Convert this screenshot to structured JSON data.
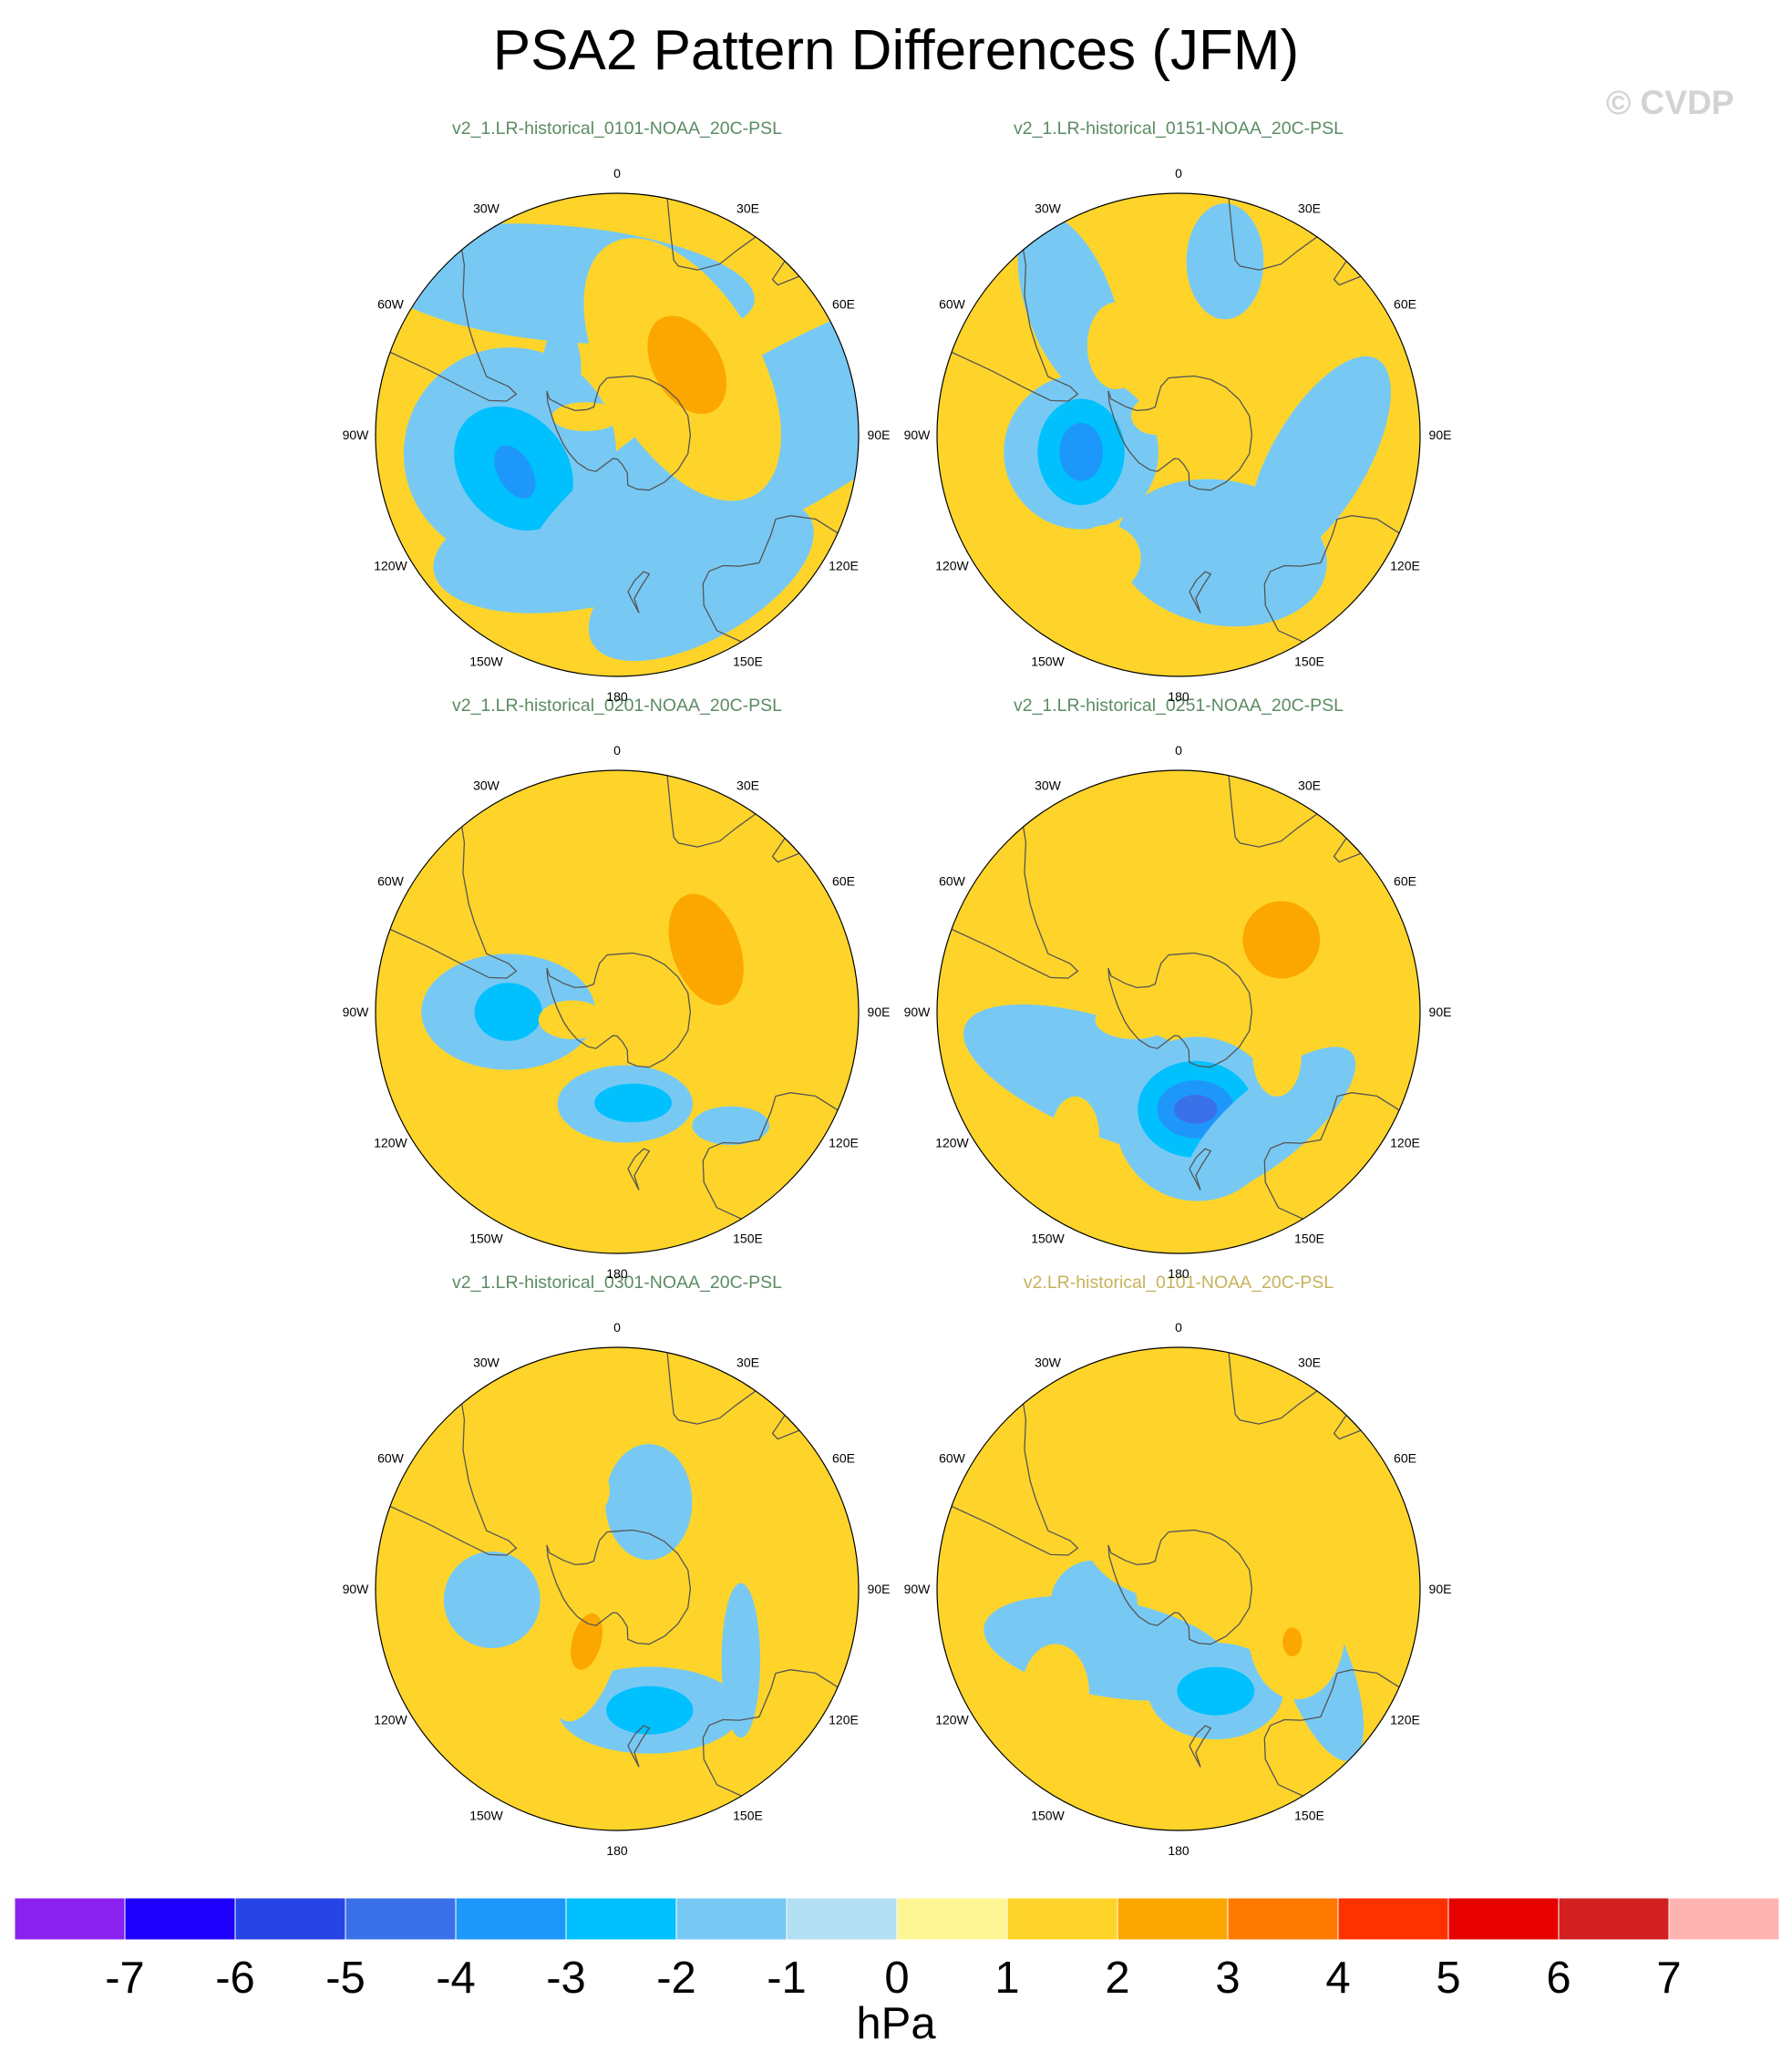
{
  "title": "PSA2 Pattern Differences (JFM)",
  "watermark": "© CVDP",
  "colors": {
    "panel_title_default": "#5b8b63",
    "panel_title_highlight": "#c8b25a",
    "coast": "#555555"
  },
  "chart_data": {
    "type": "heatmap",
    "projection": "south-polar-stereographic",
    "variable": "sea level pressure difference",
    "units": "hPa",
    "lon_labels": [
      "0",
      "30E",
      "60E",
      "90E",
      "120E",
      "150E",
      "180",
      "150W",
      "120W",
      "90W",
      "60W",
      "30W"
    ],
    "colorbar": {
      "levels": [
        -7,
        -6,
        -5,
        -4,
        -3,
        -2,
        -1,
        0,
        1,
        2,
        3,
        4,
        5,
        6,
        7
      ],
      "colors": [
        "#8a21f0",
        "#1e00fc",
        "#2744e6",
        "#3b71e8",
        "#1e97fb",
        "#01c0fe",
        "#77c9f4",
        "#b3dff3",
        "#fef694",
        "#fed42a",
        "#fca700",
        "#fd7900",
        "#fe3200",
        "#e60000",
        "#d21f1f",
        "#ffb4b4"
      ],
      "label": "hPa"
    },
    "panels": [
      {
        "title": "v2_1.LR-historical_0101-NOAA_20C-PSL",
        "highlight": false,
        "features": [
          {
            "level": -1,
            "lat": -52,
            "lon": -160,
            "w": 0.13,
            "h": 0.3,
            "rot": 80
          },
          {
            "level": -1,
            "lat": -55,
            "lon": -100,
            "w": 0.22,
            "h": 0.22,
            "rot": 30
          },
          {
            "level": -2,
            "lat": -55,
            "lon": -108,
            "w": 0.14,
            "h": 0.11,
            "rot": 50
          },
          {
            "level": -3,
            "lat": -55,
            "lon": -110,
            "w": 0.06,
            "h": 0.035,
            "rot": 60
          },
          {
            "level": -1,
            "lat": -62,
            "lon": -40,
            "w": 0.04,
            "h": 0.09,
            "rot": 0
          },
          {
            "level": -1,
            "lat": -40,
            "lon": 90,
            "w": 0.16,
            "h": 0.6,
            "rot": 60
          },
          {
            "level": -1,
            "lat": -38,
            "lon": 150,
            "w": 0.12,
            "h": 0.26,
            "rot": 60
          },
          {
            "level": -1,
            "lat": -40,
            "lon": -20,
            "w": 0.12,
            "h": 0.4,
            "rot": 95
          },
          {
            "level": 1,
            "lat": -60,
            "lon": 45,
            "w": 0.16,
            "h": 0.3,
            "rot": -30
          },
          {
            "level": 2,
            "lat": -58,
            "lon": 45,
            "w": 0.07,
            "h": 0.11,
            "rot": -30
          },
          {
            "level": 1,
            "lat": -78,
            "lon": -60,
            "w": 0.07,
            "h": 0.03,
            "rot": 0
          }
        ]
      },
      {
        "title": "v2_1.LR-historical_0151-NOAA_20C-PSL",
        "highlight": false,
        "features": [
          {
            "level": -1,
            "lat": -58,
            "lon": -100,
            "w": 0.16,
            "h": 0.16,
            "rot": 0
          },
          {
            "level": -2,
            "lat": -58,
            "lon": -100,
            "w": 0.09,
            "h": 0.11,
            "rot": 0
          },
          {
            "level": -3,
            "lat": -58,
            "lon": -100,
            "w": 0.045,
            "h": 0.06,
            "rot": 0
          },
          {
            "level": -1,
            "lat": -50,
            "lon": 160,
            "w": 0.22,
            "h": 0.15,
            "rot": 10
          },
          {
            "level": -1,
            "lat": -45,
            "lon": 100,
            "w": 0.1,
            "h": 0.24,
            "rot": 30
          },
          {
            "level": -1,
            "lat": -38,
            "lon": -40,
            "w": 0.09,
            "h": 0.2,
            "rot": -20
          },
          {
            "level": -1,
            "lat": -35,
            "lon": 15,
            "w": 0.08,
            "h": 0.12,
            "rot": 0
          },
          {
            "level": 1,
            "lat": -55,
            "lon": -35,
            "w": 0.06,
            "h": 0.09,
            "rot": 0
          },
          {
            "level": 1,
            "lat": -55,
            "lon": 40,
            "w": 0.06,
            "h": 0.05,
            "rot": 0
          },
          {
            "level": 1,
            "lat": -45,
            "lon": -150,
            "w": 0.07,
            "h": 0.07,
            "rot": 0
          },
          {
            "level": 1,
            "lat": -80,
            "lon": -50,
            "w": 0.05,
            "h": 0.04,
            "rot": 0
          }
        ]
      },
      {
        "title": "v2_1.LR-historical_0201-NOAA_20C-PSL",
        "highlight": false,
        "features": [
          {
            "level": -1,
            "lat": -55,
            "lon": -90,
            "w": 0.18,
            "h": 0.12,
            "rot": 0
          },
          {
            "level": -2,
            "lat": -55,
            "lon": -90,
            "w": 0.07,
            "h": 0.06,
            "rot": 0
          },
          {
            "level": -1,
            "lat": -60,
            "lon": 175,
            "w": 0.14,
            "h": 0.08,
            "rot": 0
          },
          {
            "level": -2,
            "lat": -60,
            "lon": 170,
            "w": 0.08,
            "h": 0.04,
            "rot": 0
          },
          {
            "level": -1,
            "lat": -40,
            "lon": 135,
            "w": 0.08,
            "h": 0.04,
            "rot": 0
          },
          {
            "level": 1,
            "lat": -55,
            "lon": 55,
            "w": 0.14,
            "h": 0.22,
            "rot": -20
          },
          {
            "level": 2,
            "lat": -55,
            "lon": 55,
            "w": 0.07,
            "h": 0.12,
            "rot": -20
          },
          {
            "level": 1,
            "lat": -55,
            "lon": -20,
            "w": 0.11,
            "h": 0.06,
            "rot": 0
          },
          {
            "level": 1,
            "lat": -75,
            "lon": -100,
            "w": 0.07,
            "h": 0.04,
            "rot": 0
          }
        ]
      },
      {
        "title": "v2_1.LR-historical_0251-NOAA_20C-PSL",
        "highlight": false,
        "features": [
          {
            "level": -1,
            "lat": -60,
            "lon": -140,
            "w": 0.34,
            "h": 0.12,
            "rot": 20
          },
          {
            "level": -1,
            "lat": -55,
            "lon": 170,
            "w": 0.17,
            "h": 0.17,
            "rot": 0
          },
          {
            "level": -2,
            "lat": -58,
            "lon": 170,
            "w": 0.12,
            "h": 0.1,
            "rot": 0
          },
          {
            "level": -3,
            "lat": -58,
            "lon": 170,
            "w": 0.08,
            "h": 0.06,
            "rot": 0
          },
          {
            "level": -4,
            "lat": -58,
            "lon": 170,
            "w": 0.045,
            "h": 0.03,
            "rot": 0
          },
          {
            "level": -1,
            "lat": -45,
            "lon": 140,
            "w": 0.22,
            "h": 0.08,
            "rot": -40
          },
          {
            "level": 1,
            "lat": -50,
            "lon": 55,
            "w": 0.14,
            "h": 0.14,
            "rot": 0
          },
          {
            "level": 2,
            "lat": -50,
            "lon": 55,
            "w": 0.08,
            "h": 0.08,
            "rot": 0
          },
          {
            "level": 1,
            "lat": -55,
            "lon": -25,
            "w": 0.09,
            "h": 0.1,
            "rot": 0
          },
          {
            "level": 1,
            "lat": -75,
            "lon": -100,
            "w": 0.08,
            "h": 0.04,
            "rot": 0
          },
          {
            "level": 1,
            "lat": -55,
            "lon": 115,
            "w": 0.05,
            "h": 0.08,
            "rot": 0
          },
          {
            "level": 1,
            "lat": -40,
            "lon": -140,
            "w": 0.05,
            "h": 0.08,
            "rot": 0
          }
        ]
      },
      {
        "title": "v2_1.LR-historical_0301-NOAA_20C-PSL",
        "highlight": false,
        "features": [
          {
            "level": -1,
            "lat": -50,
            "lon": 165,
            "w": 0.19,
            "h": 0.09,
            "rot": 0
          },
          {
            "level": -2,
            "lat": -50,
            "lon": 165,
            "w": 0.09,
            "h": 0.05,
            "rot": 0
          },
          {
            "level": -1,
            "lat": -50,
            "lon": -95,
            "w": 0.1,
            "h": 0.1,
            "rot": 0
          },
          {
            "level": -1,
            "lat": -60,
            "lon": 20,
            "w": 0.09,
            "h": 0.12,
            "rot": 0
          },
          {
            "level": -1,
            "lat": -45,
            "lon": 120,
            "w": 0.04,
            "h": 0.16,
            "rot": 0
          },
          {
            "level": 1,
            "lat": -70,
            "lon": -150,
            "w": 0.07,
            "h": 0.17,
            "rot": 15
          },
          {
            "level": 2,
            "lat": -70,
            "lon": -150,
            "w": 0.03,
            "h": 0.06,
            "rot": 15
          },
          {
            "level": 1,
            "lat": -55,
            "lon": -25,
            "w": 0.08,
            "h": 0.07,
            "rot": 0
          },
          {
            "level": 1,
            "lat": -55,
            "lon": 65,
            "w": 0.05,
            "h": 0.08,
            "rot": 0
          }
        ]
      },
      {
        "title": "v2.LR-historical_0101-NOAA_20C-PSL",
        "highlight": true,
        "features": [
          {
            "level": -1,
            "lat": -60,
            "lon": -130,
            "w": 0.26,
            "h": 0.1,
            "rot": 10
          },
          {
            "level": -1,
            "lat": -62,
            "lon": -100,
            "w": 0.09,
            "h": 0.09,
            "rot": 0
          },
          {
            "level": -1,
            "lat": -55,
            "lon": 160,
            "w": 0.14,
            "h": 0.1,
            "rot": 0
          },
          {
            "level": -2,
            "lat": -55,
            "lon": 160,
            "w": 0.08,
            "h": 0.05,
            "rot": 0
          },
          {
            "level": -1,
            "lat": -40,
            "lon": 120,
            "w": 0.07,
            "h": 0.2,
            "rot": -20
          },
          {
            "level": 1,
            "lat": -70,
            "lon": 0,
            "w": 0.2,
            "h": 0.15,
            "rot": 0
          },
          {
            "level": 1,
            "lat": -50,
            "lon": 110,
            "w": 0.1,
            "h": 0.14,
            "rot": 0
          },
          {
            "level": 2,
            "lat": -50,
            "lon": 115,
            "w": 0.02,
            "h": 0.03,
            "rot": 0
          },
          {
            "level": 1,
            "lat": -40,
            "lon": -130,
            "w": 0.07,
            "h": 0.1,
            "rot": 0
          },
          {
            "level": 1,
            "lat": -40,
            "lon": -175,
            "w": 0.05,
            "h": 0.03,
            "rot": 0
          }
        ]
      }
    ]
  }
}
